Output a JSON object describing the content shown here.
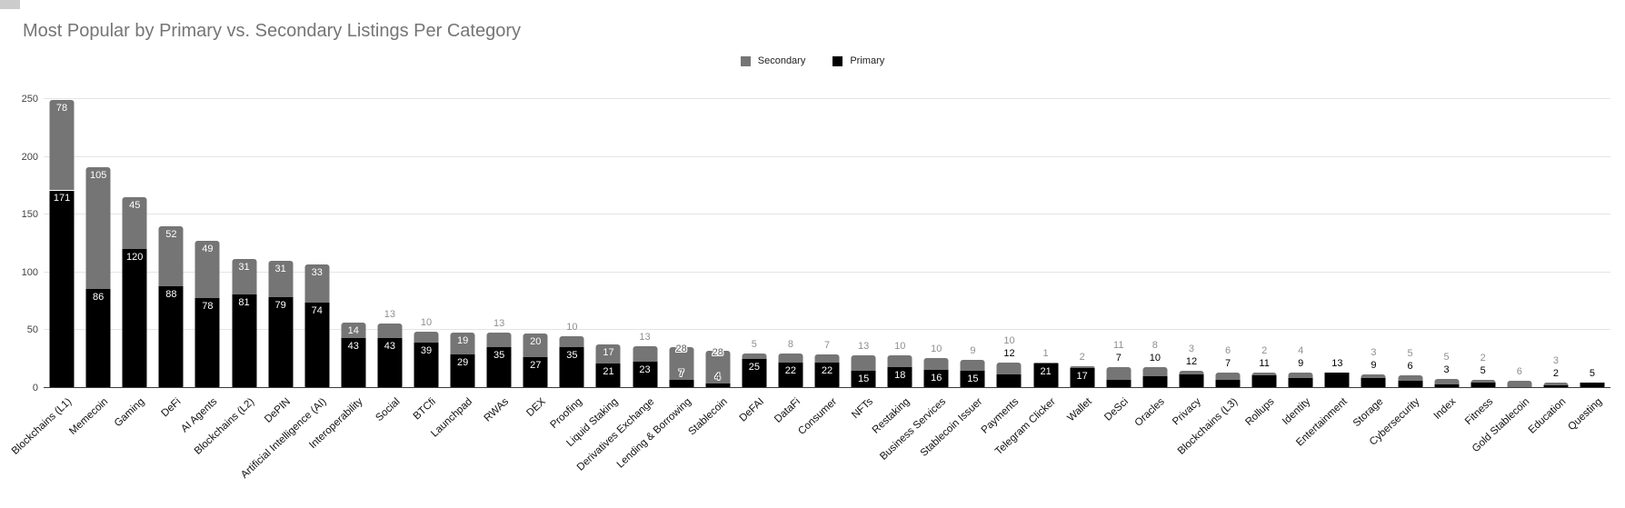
{
  "title": "Most Popular by Primary vs. Secondary Listings Per Category",
  "colors": {
    "primary": "#000000",
    "secondary": "#757575",
    "title_text": "#757575",
    "gridline": "#e5e5e5",
    "axis_line": "#3c3c3c",
    "outside_secondary_label": "#8f8f8f",
    "outside_primary_label": "#000000",
    "inside_label": "#ffffff"
  },
  "legend": [
    {
      "label": "Secondary",
      "color": "#757575"
    },
    {
      "label": "Primary",
      "color": "#000000"
    }
  ],
  "y_axis": {
    "ticks": [
      0,
      50,
      100,
      150,
      200,
      250
    ]
  },
  "chart_data": {
    "type": "bar",
    "stacked": true,
    "title": "Most Popular by Primary vs. Secondary Listings Per Category",
    "xlabel": "",
    "ylabel": "",
    "ylim": [
      0,
      250
    ],
    "grid": true,
    "legend_position": "top-center",
    "categories": [
      "Blockchains (L1)",
      "Memecoin",
      "Gaming",
      "DeFi",
      "AI Agents",
      "Blockchains (L2)",
      "DePIN",
      "Artificial Intelligence (AI)",
      "Interoperability",
      "Social",
      "BTCfi",
      "Launchpad",
      "RWAs",
      "DEX",
      "Proofing",
      "Liquid Staking",
      "Derivatives Exchange",
      "Lending & Borrowing",
      "Stablecoin",
      "DeFAI",
      "DataFi",
      "Consumer",
      "NFTs",
      "Restaking",
      "Business Services",
      "Stablecoin Issuer",
      "Payments",
      "Telegram Clicker",
      "Wallet",
      "DeSci",
      "Oracles",
      "Privacy",
      "Blockchains (L3)",
      "Rollups",
      "Identity",
      "Entertainment",
      "Storage",
      "Cybersecurity",
      "Index",
      "Fitness",
      "Gold Stablecoin",
      "Education",
      "Questing"
    ],
    "series": [
      {
        "name": "Secondary",
        "color": "#757575",
        "values": [
          78,
          105,
          45,
          52,
          49,
          31,
          31,
          33,
          14,
          13,
          10,
          19,
          13,
          20,
          10,
          17,
          13,
          28,
          28,
          5,
          8,
          7,
          13,
          10,
          10,
          9,
          10,
          1,
          2,
          11,
          8,
          3,
          6,
          2,
          4,
          0,
          3,
          5,
          5,
          2,
          6,
          3,
          0
        ]
      },
      {
        "name": "Primary",
        "color": "#000000",
        "values": [
          171,
          86,
          120,
          88,
          78,
          81,
          79,
          74,
          43,
          43,
          39,
          29,
          35,
          27,
          35,
          21,
          23,
          7,
          4,
          25,
          22,
          22,
          15,
          18,
          16,
          15,
          12,
          21,
          17,
          7,
          10,
          12,
          7,
          11,
          9,
          13,
          9,
          6,
          3,
          5,
          0,
          2,
          5
        ]
      }
    ]
  }
}
